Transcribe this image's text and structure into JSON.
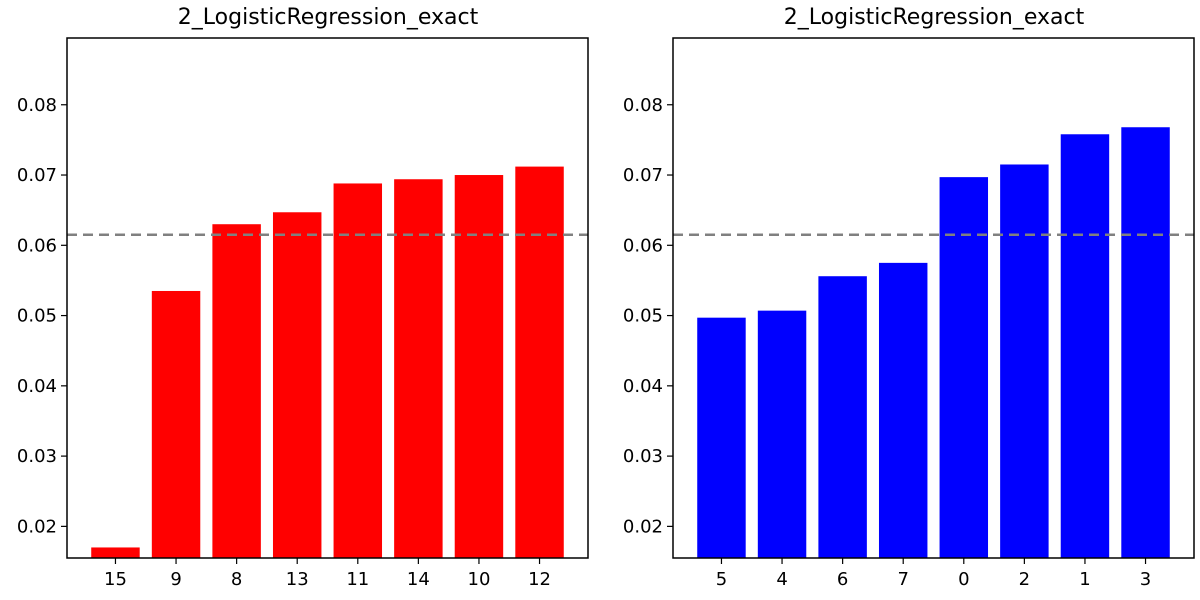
{
  "chart_data": [
    {
      "type": "bar",
      "title": "2_LogisticRegression_exact",
      "xlabel": "",
      "ylabel": "",
      "categories": [
        "15",
        "9",
        "8",
        "13",
        "11",
        "14",
        "10",
        "12"
      ],
      "values": [
        0.017,
        0.0535,
        0.063,
        0.0647,
        0.0688,
        0.0694,
        0.07,
        0.0712
      ],
      "bar_color": "#ff0000",
      "reference_line": 0.0615,
      "reference_color": "#808080",
      "ylim": [
        0.0155,
        0.0895
      ],
      "yticks": [
        "0.02",
        "0.03",
        "0.04",
        "0.05",
        "0.06",
        "0.07",
        "0.08"
      ],
      "grid": false
    },
    {
      "type": "bar",
      "title": "2_LogisticRegression_exact",
      "xlabel": "",
      "ylabel": "",
      "categories": [
        "5",
        "4",
        "6",
        "7",
        "0",
        "2",
        "1",
        "3"
      ],
      "values": [
        0.0497,
        0.0507,
        0.0556,
        0.0575,
        0.0697,
        0.0715,
        0.0758,
        0.0768
      ],
      "bar_color": "#0000ff",
      "reference_line": 0.0615,
      "reference_color": "#808080",
      "ylim": [
        0.0155,
        0.0895
      ],
      "yticks": [
        "0.02",
        "0.03",
        "0.04",
        "0.05",
        "0.06",
        "0.07",
        "0.08"
      ],
      "grid": false
    }
  ]
}
